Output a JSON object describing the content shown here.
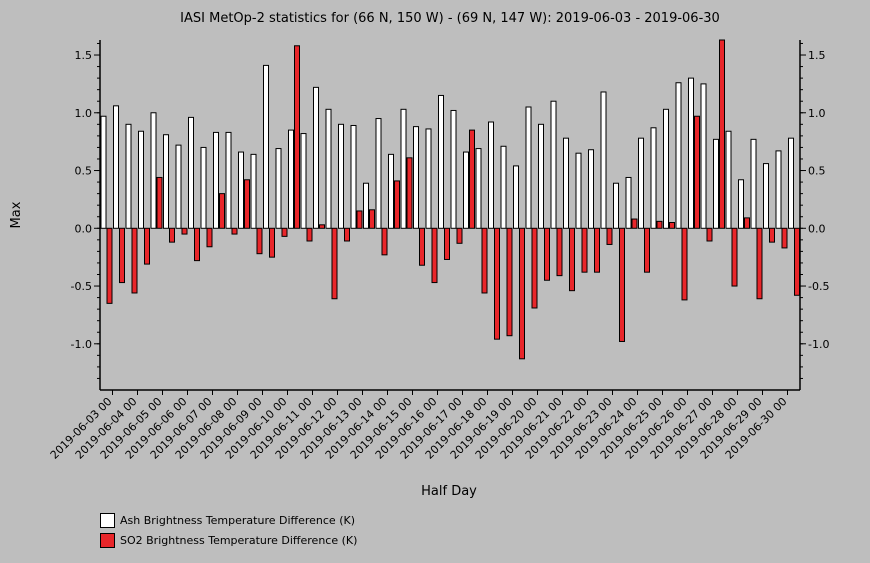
{
  "chart_data": {
    "type": "bar",
    "title": "IASI MetOp-2 statistics for (66 N, 150 W) - (69 N, 147 W): 2019-06-03 - 2019-06-30",
    "xlabel": "Half Day",
    "ylabel": "Max",
    "ylim": [
      -1.4,
      1.63
    ],
    "yticks": [
      -1.0,
      -0.5,
      0.0,
      0.5,
      1.0,
      1.5
    ],
    "ytick_labels": [
      "-1.0",
      "-0.5",
      "0.0",
      "0.5",
      "1.0",
      "1.5"
    ],
    "grid": false,
    "legend_position": "bottom-left",
    "categories": [
      "2019-06-03 00",
      "2019-06-03 12",
      "2019-06-04 00",
      "2019-06-04 12",
      "2019-06-05 00",
      "2019-06-05 12",
      "2019-06-06 00",
      "2019-06-06 12",
      "2019-06-07 00",
      "2019-06-07 12",
      "2019-06-08 00",
      "2019-06-08 12",
      "2019-06-09 00",
      "2019-06-09 12",
      "2019-06-10 00",
      "2019-06-10 12",
      "2019-06-11 00",
      "2019-06-11 12",
      "2019-06-12 00",
      "2019-06-12 12",
      "2019-06-13 00",
      "2019-06-13 12",
      "2019-06-14 00",
      "2019-06-14 12",
      "2019-06-15 00",
      "2019-06-15 12",
      "2019-06-16 00",
      "2019-06-16 12",
      "2019-06-17 00",
      "2019-06-17 12",
      "2019-06-18 00",
      "2019-06-18 12",
      "2019-06-19 00",
      "2019-06-19 12",
      "2019-06-20 00",
      "2019-06-20 12",
      "2019-06-21 00",
      "2019-06-21 12",
      "2019-06-22 00",
      "2019-06-22 12",
      "2019-06-23 00",
      "2019-06-23 12",
      "2019-06-24 00",
      "2019-06-24 12",
      "2019-06-25 00",
      "2019-06-25 12",
      "2019-06-26 00",
      "2019-06-26 12",
      "2019-06-27 00",
      "2019-06-27 12",
      "2019-06-28 00",
      "2019-06-28 12",
      "2019-06-29 00",
      "2019-06-29 12",
      "2019-06-30 00",
      "2019-06-30 12"
    ],
    "tick_labels": [
      "2019-06-03 00",
      "2019-06-04 00",
      "2019-06-05 00",
      "2019-06-06 00",
      "2019-06-07 00",
      "2019-06-08 00",
      "2019-06-09 00",
      "2019-06-10 00",
      "2019-06-11 00",
      "2019-06-12 00",
      "2019-06-13 00",
      "2019-06-14 00",
      "2019-06-15 00",
      "2019-06-16 00",
      "2019-06-17 00",
      "2019-06-18 00",
      "2019-06-19 00",
      "2019-06-20 00",
      "2019-06-21 00",
      "2019-06-22 00",
      "2019-06-23 00",
      "2019-06-24 00",
      "2019-06-25 00",
      "2019-06-26 00",
      "2019-06-27 00",
      "2019-06-28 00",
      "2019-06-29 00",
      "2019-06-30 00"
    ],
    "series": [
      {
        "name": "Ash Brightness Temperature Difference (K)",
        "color": "#ffffff",
        "values": [
          0.97,
          1.06,
          0.9,
          0.84,
          1.0,
          0.81,
          0.72,
          0.96,
          0.7,
          0.83,
          0.83,
          0.66,
          0.64,
          1.41,
          0.69,
          0.85,
          0.82,
          1.22,
          1.03,
          0.9,
          0.89,
          0.39,
          0.95,
          0.64,
          1.03,
          0.88,
          0.86,
          1.15,
          1.02,
          0.66,
          0.69,
          0.92,
          0.71,
          0.54,
          1.05,
          0.9,
          1.1,
          0.78,
          0.65,
          0.68,
          1.18,
          0.39,
          0.44,
          0.78,
          0.87,
          1.03,
          1.26,
          1.3,
          1.25,
          0.77,
          0.84,
          0.42,
          0.77,
          0.56,
          0.67,
          0.78
        ]
      },
      {
        "name": "SO2 Brightness Temperature Difference (K)",
        "color": "#e8262a",
        "values": [
          -0.65,
          -0.47,
          -0.56,
          -0.31,
          0.44,
          -0.12,
          -0.05,
          -0.28,
          -0.16,
          0.3,
          -0.05,
          0.42,
          -0.22,
          -0.25,
          -0.07,
          1.58,
          -0.11,
          0.03,
          -0.61,
          -0.11,
          0.15,
          0.16,
          -0.23,
          0.41,
          0.61,
          -0.32,
          -0.47,
          -0.27,
          -0.13,
          0.85,
          -0.56,
          -0.96,
          -0.93,
          -1.13,
          -0.69,
          -0.45,
          -0.41,
          -0.54,
          -0.38,
          -0.38,
          -0.14,
          -0.98,
          0.08,
          -0.38,
          0.06,
          0.05,
          -0.62,
          0.97,
          -0.11,
          1.63,
          -0.5,
          0.09,
          -0.61,
          -0.12,
          -0.17,
          -0.58
        ]
      }
    ]
  }
}
